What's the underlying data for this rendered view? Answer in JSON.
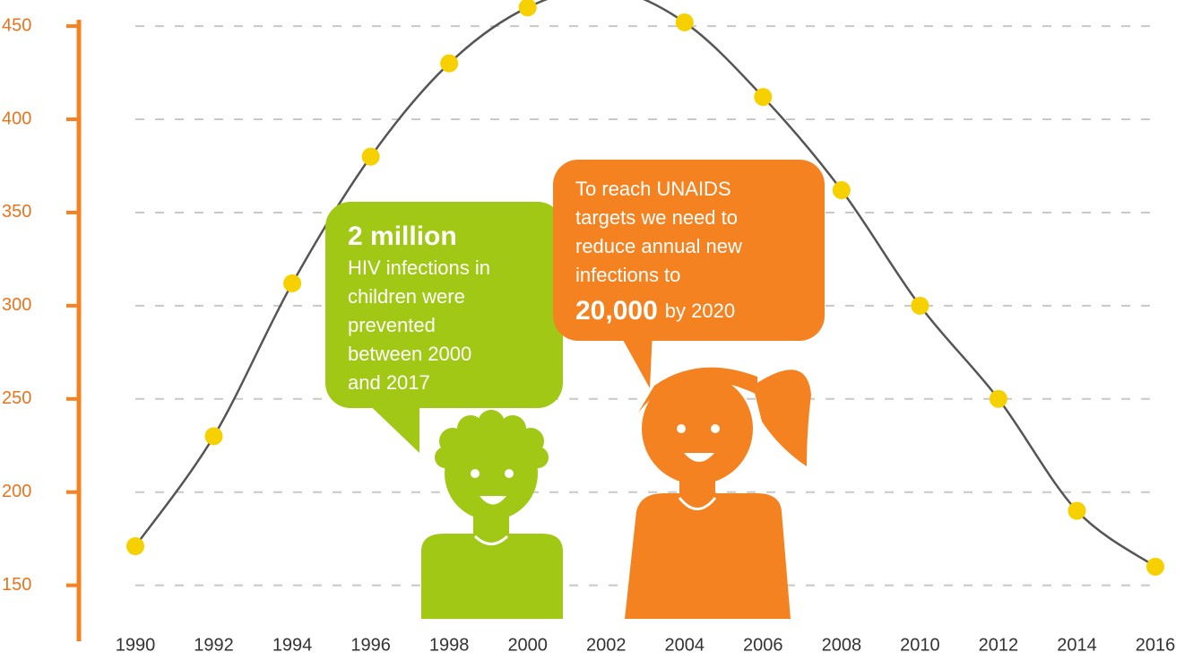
{
  "chart_data": {
    "type": "line",
    "x": [
      1990,
      1992,
      1994,
      1996,
      1998,
      2000,
      2002,
      2004,
      2006,
      2008,
      2010,
      2012,
      2014,
      2016
    ],
    "series": [
      {
        "color": "#555555",
        "marker_color": "#f7d000",
        "values": [
          171,
          230,
          312,
          380,
          430,
          460,
          470,
          452,
          412,
          362,
          300,
          250,
          190,
          160
        ]
      }
    ],
    "xlim": [
      1990,
      2016
    ],
    "ylim": [
      120,
      464
    ],
    "yticks": [
      150,
      200,
      250,
      300,
      350,
      400,
      450
    ],
    "grid": true,
    "axis_color": "#f58220",
    "annotations": [
      {
        "color": "#a0c814",
        "headline": "2 million",
        "lines": [
          "HIV infections in",
          "children were",
          "prevented",
          "between 2000",
          "and 2017"
        ]
      },
      {
        "color": "#f58220",
        "lines": [
          "To reach UNAIDS",
          "targets we need to",
          "reduce annual new",
          "infections to"
        ],
        "headline": "20,000",
        "suffix": "by 2020"
      }
    ]
  }
}
